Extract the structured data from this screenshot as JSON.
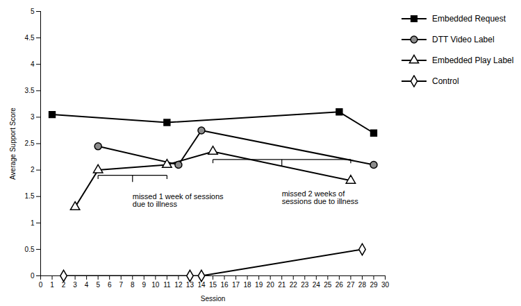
{
  "chart_data": {
    "type": "line",
    "xlabel": "Session",
    "ylabel": "Average Support Score",
    "xlim": [
      0,
      30
    ],
    "xticks": [
      0,
      1,
      2,
      3,
      4,
      5,
      6,
      7,
      8,
      9,
      10,
      11,
      12,
      13,
      14,
      15,
      16,
      17,
      18,
      19,
      20,
      21,
      22,
      23,
      24,
      25,
      26,
      27,
      28,
      29,
      30
    ],
    "ylim": [
      0,
      5
    ],
    "yticks": [
      0,
      0.5,
      1,
      1.5,
      2,
      2.5,
      3,
      3.5,
      4,
      4.5,
      5
    ],
    "grid": false,
    "legend": "right",
    "series": [
      {
        "name": "Embedded Request",
        "color": "#000000",
        "marker": "square",
        "x": [
          1,
          11,
          26,
          29
        ],
        "values": [
          3.05,
          2.9,
          3.1,
          2.7
        ]
      },
      {
        "name": "DTT Video Label",
        "color": "#000000",
        "marker": "circle-shaded",
        "x": [
          5,
          12,
          14,
          29
        ],
        "values": [
          2.45,
          2.1,
          2.75,
          2.1
        ]
      },
      {
        "name": "Embedded Play Label",
        "color": "#000000",
        "marker": "triangle-open",
        "x": [
          3,
          5,
          11,
          15,
          27
        ],
        "values": [
          1.3,
          2.0,
          2.1,
          2.35,
          1.8
        ]
      },
      {
        "name": "Control",
        "color": "#000000",
        "marker": "diamond-open",
        "x": [
          2,
          13,
          14,
          28
        ],
        "values": [
          0.0,
          0.0,
          0.0,
          0.5
        ]
      }
    ],
    "annotations": [
      {
        "text": "missed 1 week of sessions\ndue to illness",
        "x": 8.0,
        "y": 1.55,
        "bracket": {
          "x1": 5,
          "x2": 11,
          "y": 1.9
        }
      },
      {
        "text": "missed 2 weeks of\nsessions due to illness",
        "x": 21.0,
        "y": 1.6,
        "bracket": {
          "x1": 15,
          "x2": 27,
          "y": 2.2
        }
      }
    ]
  }
}
